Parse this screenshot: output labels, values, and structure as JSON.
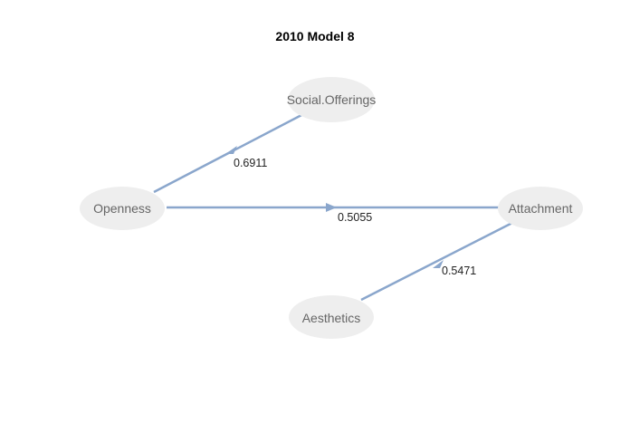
{
  "title": "2010 Model 8",
  "nodes": {
    "social": "Social.Offerings",
    "openness": "Openness",
    "attachment": "Attachment",
    "aesthetics": "Aesthetics"
  },
  "edges": {
    "openness_social": "0.6911",
    "openness_attachment": "0.5055",
    "aesthetics_attachment": "0.5471"
  },
  "colors": {
    "edge": "#8aa6cc",
    "node_fill": "#eeeeee",
    "node_text": "#666666"
  }
}
